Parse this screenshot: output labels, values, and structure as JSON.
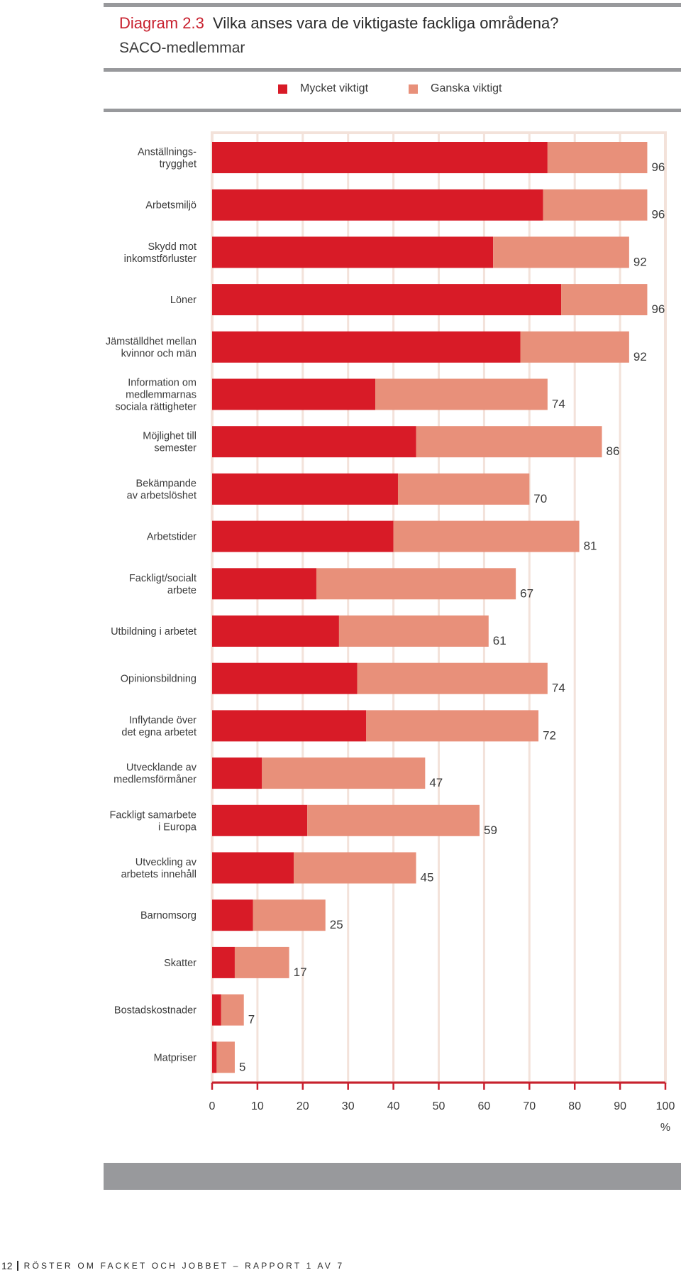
{
  "header": {
    "diagram_number": "Diagram 2.3",
    "title": "Vilka anses vara de viktigaste fackliga områdena?",
    "subtitle": "SACO-medlemmar"
  },
  "colors": {
    "very_important": "#d81b27",
    "fairly_important": "#e8907a",
    "grid": "#f3e2da",
    "axis": "#c8202e",
    "rule": "#98999c"
  },
  "chart_data": {
    "type": "bar",
    "orientation": "horizontal",
    "stacked": true,
    "title": "Vilka anses vara de viktigaste fackliga områdena?",
    "subtitle": "SACO-medlemmar",
    "xlabel": "%",
    "ylabel": "",
    "xlim": [
      0,
      100
    ],
    "xticks": [
      0,
      10,
      20,
      30,
      40,
      50,
      60,
      70,
      80,
      90,
      100
    ],
    "grid": true,
    "legend_position": "top",
    "categories": [
      [
        "Anställnings-",
        "trygghet"
      ],
      [
        "Arbetsmiljö"
      ],
      [
        "Skydd mot",
        "inkomstförluster"
      ],
      [
        "Löner"
      ],
      [
        "Jämställdhet mellan",
        "kvinnor och män"
      ],
      [
        "Information om",
        "medlemmarnas",
        "sociala rättigheter"
      ],
      [
        "Möjlighet till",
        "semester"
      ],
      [
        "Bekämpande",
        "av arbetslöshet"
      ],
      [
        "Arbetstider"
      ],
      [
        "Fackligt/socialt",
        "arbete"
      ],
      [
        "Utbildning i arbetet"
      ],
      [
        "Opinionsbildning"
      ],
      [
        "Inflytande över",
        "det egna arbetet"
      ],
      [
        "Utvecklande av",
        "medlemsförmåner"
      ],
      [
        "Fackligt samarbete",
        "i Europa"
      ],
      [
        "Utveckling av",
        "arbetets innehåll"
      ],
      [
        "Barnomsorg"
      ],
      [
        "Skatter"
      ],
      [
        "Bostadskostnader"
      ],
      [
        "Matpriser"
      ]
    ],
    "series": [
      {
        "name": "Mycket viktigt",
        "values": [
          74,
          73,
          62,
          77,
          68,
          36,
          45,
          41,
          40,
          23,
          28,
          32,
          34,
          11,
          21,
          18,
          9,
          5,
          2,
          1
        ]
      },
      {
        "name": "Ganska viktigt",
        "values": [
          22,
          23,
          30,
          19,
          24,
          38,
          41,
          29,
          41,
          44,
          33,
          42,
          38,
          36,
          38,
          27,
          16,
          12,
          5,
          4
        ]
      }
    ],
    "totals": [
      96,
      96,
      92,
      96,
      92,
      74,
      86,
      70,
      81,
      67,
      61,
      74,
      72,
      47,
      59,
      45,
      25,
      17,
      7,
      5
    ]
  },
  "footer": {
    "page_number": "12",
    "running_title": "RÖSTER OM FACKET OCH JOBBET – RAPPORT 1 AV 7"
  }
}
